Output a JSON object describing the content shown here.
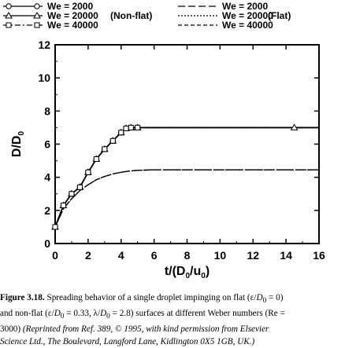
{
  "chart_data": {
    "type": "line",
    "xlabel": "t/(D0/u0)",
    "ylabel": "D/D0",
    "xlim": [
      0,
      16
    ],
    "ylim": [
      0,
      12
    ],
    "x_ticks": [
      "0",
      "2",
      "4",
      "6",
      "8",
      "10",
      "12",
      "14",
      "16"
    ],
    "y_ticks": [
      "0",
      "2",
      "4",
      "6",
      "8",
      "10",
      "12"
    ],
    "legend_groups": [
      "(Non-flat)",
      "(Flat)"
    ],
    "series": [
      {
        "name": "We = 2000",
        "group": "Non-flat",
        "style": "solid",
        "marker": "circle",
        "x": [
          0,
          0.5,
          1.0,
          1.5,
          2.0,
          2.5,
          3.0,
          3.5,
          4.0,
          4.3,
          4.6,
          5.0,
          8,
          12,
          16
        ],
        "y": [
          1.0,
          2.3,
          3.0,
          3.4,
          4.3,
          5.1,
          5.7,
          6.2,
          6.7,
          6.95,
          7.0,
          7.0,
          7.0,
          7.0,
          7.0
        ]
      },
      {
        "name": "We = 20000",
        "group": "Non-flat",
        "style": "solid",
        "marker": "triangle",
        "x": [
          0,
          0.5,
          1.0,
          1.5,
          2.0,
          2.5,
          3.0,
          3.5,
          4.0,
          4.3,
          4.6,
          5.0,
          8,
          12,
          14.5,
          16
        ],
        "y": [
          1.0,
          2.3,
          3.0,
          3.4,
          4.3,
          5.1,
          5.7,
          6.2,
          6.7,
          6.95,
          7.0,
          7.0,
          7.0,
          7.0,
          7.0,
          7.0
        ]
      },
      {
        "name": "We = 40000",
        "group": "Non-flat",
        "style": "dashdot",
        "marker": "square",
        "x": [
          0,
          0.5,
          1.0,
          1.5,
          2.0,
          2.5,
          3.0,
          3.5,
          4.0,
          4.3,
          4.6,
          5.0,
          8,
          12,
          16
        ],
        "y": [
          1.0,
          2.3,
          3.0,
          3.4,
          4.3,
          5.1,
          5.7,
          6.2,
          6.7,
          6.95,
          7.0,
          7.0,
          7.0,
          7.0,
          7.0
        ]
      },
      {
        "name": "We = 2000",
        "group": "Flat",
        "style": "longdash",
        "marker": "none",
        "x": [
          0,
          0.5,
          1.0,
          1.5,
          2.0,
          2.5,
          3.0,
          3.5,
          4.0,
          4.5,
          5.0,
          6.0,
          8,
          12,
          16
        ],
        "y": [
          1.0,
          2.1,
          2.7,
          3.2,
          3.55,
          3.85,
          4.05,
          4.2,
          4.3,
          4.38,
          4.42,
          4.45,
          4.45,
          4.45,
          4.45
        ]
      },
      {
        "name": "We = 20000",
        "group": "Flat",
        "style": "dotted",
        "marker": "none",
        "x": [
          0,
          0.5,
          1.0,
          1.5,
          2.0,
          2.5,
          3.0,
          3.5,
          4.0,
          4.5,
          5.0,
          6.0,
          8,
          12,
          16
        ],
        "y": [
          1.0,
          2.1,
          2.7,
          3.2,
          3.55,
          3.85,
          4.05,
          4.2,
          4.3,
          4.38,
          4.42,
          4.45,
          4.45,
          4.45,
          4.45
        ]
      },
      {
        "name": "We = 40000",
        "group": "Flat",
        "style": "shortdash",
        "marker": "none",
        "x": [
          0,
          0.5,
          1.0,
          1.5,
          2.0,
          2.5,
          3.0,
          3.5,
          4.0,
          4.5,
          5.0,
          6.0,
          8,
          12,
          16
        ],
        "y": [
          1.0,
          2.1,
          2.7,
          3.2,
          3.55,
          3.85,
          4.05,
          4.2,
          4.3,
          4.38,
          4.42,
          4.45,
          4.45,
          4.45,
          4.45
        ]
      }
    ],
    "grid": false,
    "legend_placement": "top"
  },
  "caption": {
    "label": "Figure 3.18.",
    "line1_text": " Spreading behavior of a single droplet impinging on flat (ε/",
    "line1_sym": "D",
    "line1_sub": "0",
    "line1_end": " = 0)",
    "line2_text": "and non-flat (ε/",
    "line2_sym": "D",
    "line2_sub": "0",
    "line2_mid": " = 0.33, λ/",
    "line2_sym2": "D",
    "line2_sub2": "0",
    "line2_end": " = 2.8) surfaces at different Weber numbers (Re =",
    "line3_text": "3000) ",
    "line3_italic": "(Reprinted from Ref. 389, © 1995, with kind permission from Elsevier",
    "line4_italic": "Science Ltd., The Boulevard, Langford Lane, Kidlington 0X5 1GB, UK.)"
  }
}
